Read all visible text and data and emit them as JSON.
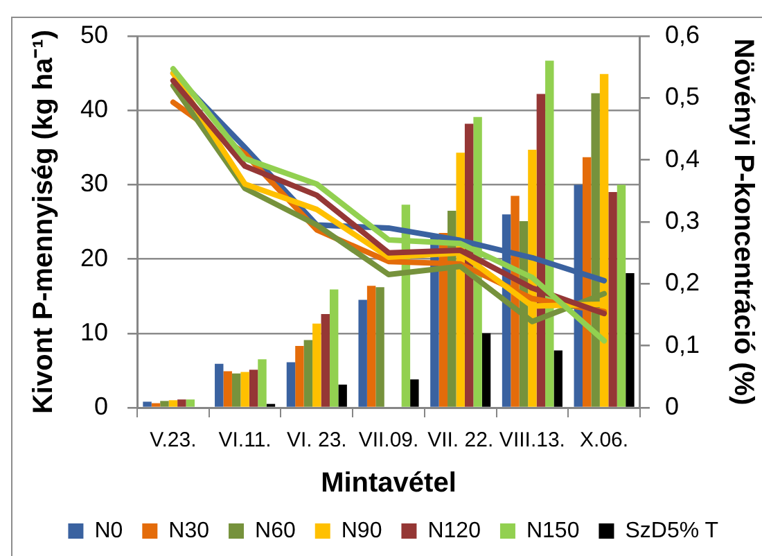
{
  "chart_data": {
    "type": "bar",
    "xlabel": "Mintavétel",
    "ylabel": "Kivont P-mennyiség (kg ha⁻¹)",
    "y2label": "Növényi P-koncentráció (%)",
    "categories": [
      "V.23.",
      "VI.11.",
      "VI. 23.",
      "VII.09.",
      "VII. 22.",
      "VIII.13.",
      "X.06."
    ],
    "series": [
      {
        "name": "N0",
        "color": "#3a62a0",
        "values": [
          0.8,
          5.9,
          6.1,
          14.5,
          23.0,
          26.0,
          30.0
        ]
      },
      {
        "name": "N30",
        "color": "#e46c0a",
        "values": [
          0.6,
          4.9,
          8.3,
          16.4,
          23.5,
          28.5,
          33.7
        ]
      },
      {
        "name": "N60",
        "color": "#76923c",
        "values": [
          0.9,
          4.6,
          9.1,
          16.2,
          26.5,
          25.1,
          42.3
        ]
      },
      {
        "name": "N90",
        "color": "#ffc000",
        "values": [
          1.0,
          4.8,
          11.3,
          null,
          34.3,
          34.7,
          44.9
        ]
      },
      {
        "name": "N120",
        "color": "#953735",
        "values": [
          1.1,
          5.1,
          12.6,
          null,
          38.2,
          42.2,
          29.0
        ]
      },
      {
        "name": "N150",
        "color": "#92d050",
        "values": [
          1.1,
          6.5,
          15.9,
          27.3,
          39.1,
          46.7,
          30.0
        ]
      },
      {
        "name": "SzD5% T",
        "color": "#000000",
        "values": [
          null,
          0.5,
          3.1,
          3.8,
          10.0,
          7.7,
          18.1
        ]
      },
      {
        "type": "line",
        "axis": "y2",
        "color": "#3a62a0",
        "values": [
          0.54,
          0.42,
          0.295,
          0.29,
          0.27,
          0.242,
          0.205
        ]
      },
      {
        "type": "line",
        "axis": "y2",
        "color": "#e46c0a",
        "values": [
          0.493,
          0.41,
          0.287,
          0.236,
          0.232,
          0.176,
          0.155
        ]
      },
      {
        "type": "line",
        "axis": "y2",
        "color": "#76923c",
        "values": [
          0.52,
          0.354,
          0.295,
          0.215,
          0.228,
          0.139,
          0.184
        ]
      },
      {
        "type": "line",
        "axis": "y2",
        "color": "#ffc000",
        "values": [
          0.54,
          0.361,
          0.32,
          0.243,
          0.25,
          0.164,
          0.167
        ]
      },
      {
        "type": "line",
        "axis": "y2",
        "color": "#953735",
        "values": [
          0.528,
          0.39,
          0.343,
          0.25,
          0.254,
          0.193,
          0.152
        ]
      },
      {
        "type": "line",
        "axis": "y2",
        "color": "#92d050",
        "values": [
          0.547,
          0.402,
          0.361,
          0.271,
          0.265,
          0.21,
          0.108
        ]
      }
    ],
    "ylim": [
      0,
      50
    ],
    "yticks": [
      0,
      10,
      20,
      30,
      40,
      50
    ],
    "y2lim": [
      0,
      0.6
    ],
    "y2ticks": [
      0,
      {
        "value": 0.1,
        "label": "0,1"
      },
      {
        "value": 0.2,
        "label": "0,2"
      },
      {
        "value": 0.3,
        "label": "0,3"
      },
      {
        "value": 0.4,
        "label": "0,4"
      },
      {
        "value": 0.5,
        "label": "0,5"
      },
      {
        "value": 0.6,
        "label": "0,6"
      }
    ],
    "grid": "y",
    "legend": "bottom"
  }
}
